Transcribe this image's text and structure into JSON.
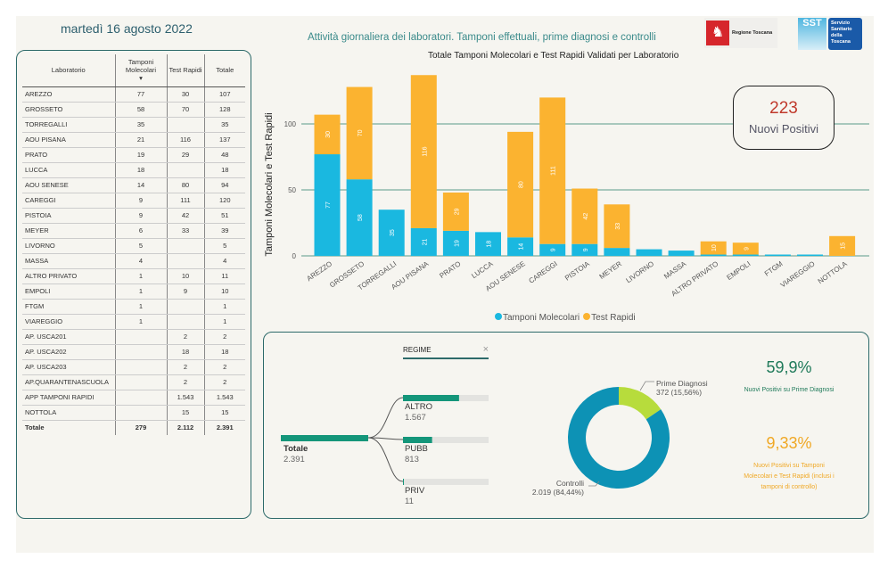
{
  "header": {
    "date": "martedì 16 agosto 2022",
    "subtitle": "Attività giornaliera dei laboratori. Tamponi effettuali, prime diagnosi e controlli",
    "logo1_text": "Regione Toscana",
    "logo2_text": "SST",
    "logo2_caption": "Servizio Sanitario della Toscana"
  },
  "table": {
    "headers": [
      "Laboratorio",
      "Tamponi Molecolari",
      "Test Rapidi",
      "Totale"
    ],
    "sort_indicator": "▾",
    "rows": [
      [
        "AREZZO",
        "77",
        "30",
        "107"
      ],
      [
        "GROSSETO",
        "58",
        "70",
        "128"
      ],
      [
        "TORREGALLI",
        "35",
        "",
        "35"
      ],
      [
        "AOU PISANA",
        "21",
        "116",
        "137"
      ],
      [
        "PRATO",
        "19",
        "29",
        "48"
      ],
      [
        "LUCCA",
        "18",
        "",
        "18"
      ],
      [
        "AOU SENESE",
        "14",
        "80",
        "94"
      ],
      [
        "CAREGGI",
        "9",
        "111",
        "120"
      ],
      [
        "PISTOIA",
        "9",
        "42",
        "51"
      ],
      [
        "MEYER",
        "6",
        "33",
        "39"
      ],
      [
        "LIVORNO",
        "5",
        "",
        "5"
      ],
      [
        "MASSA",
        "4",
        "",
        "4"
      ],
      [
        "ALTRO PRIVATO",
        "1",
        "10",
        "11"
      ],
      [
        "EMPOLI",
        "1",
        "9",
        "10"
      ],
      [
        "FTGM",
        "1",
        "",
        "1"
      ],
      [
        "VIAREGGIO",
        "1",
        "",
        "1"
      ],
      [
        "AP. USCA201",
        "",
        "2",
        "2"
      ],
      [
        "AP. USCA202",
        "",
        "18",
        "18"
      ],
      [
        "AP. USCA203",
        "",
        "2",
        "2"
      ],
      [
        "AP.QUARANTENASCUOLA",
        "",
        "2",
        "2"
      ],
      [
        "APP TAMPONI RAPIDI",
        "",
        "1.543",
        "1.543"
      ],
      [
        "NOTTOLA",
        "",
        "15",
        "15"
      ]
    ],
    "total": [
      "Totale",
      "279",
      "2.112",
      "2.391"
    ]
  },
  "kpi_box": {
    "value": "223",
    "label": "Nuovi Positivi"
  },
  "chart_data": {
    "type": "bar",
    "stacked": true,
    "title": "Totale Tamponi Molecolari e Test Rapidi Validati per Laboratorio",
    "xlabel": "",
    "ylabel": "Tamponi Molecolari e Test Rapidi",
    "ylim": [
      0,
      140
    ],
    "yticks": [
      0,
      50,
      100
    ],
    "grid": true,
    "legend": "bottom",
    "categories": [
      "AREZZO",
      "GROSSETO",
      "TORREGALLI",
      "AOU PISANA",
      "PRATO",
      "LUCCA",
      "AOU SENESE",
      "CAREGGI",
      "PISTOIA",
      "MEYER",
      "LIVORNO",
      "MASSA",
      "ALTRO PRIVATO",
      "EMPOLI",
      "FTGM",
      "VIAREGGIO",
      "NOTTOLA"
    ],
    "series": [
      {
        "name": "Tamponi Molecolari",
        "color": "#1ab8e0",
        "values": [
          77,
          58,
          35,
          21,
          19,
          18,
          14,
          9,
          9,
          6,
          5,
          4,
          1,
          1,
          1,
          1,
          0
        ]
      },
      {
        "name": "Test Rapidi",
        "color": "#fbb330",
        "values": [
          30,
          70,
          0,
          116,
          29,
          0,
          80,
          111,
          42,
          33,
          0,
          0,
          10,
          9,
          0,
          0,
          15
        ]
      }
    ]
  },
  "tree": {
    "filter_label": "REGIME",
    "root": {
      "label": "Totale",
      "value": "2.391"
    },
    "children": [
      {
        "label": "ALTRO",
        "value": "1.567",
        "fraction": 0.655
      },
      {
        "label": "PUBB",
        "value": "813",
        "fraction": 0.34
      },
      {
        "label": "PRIV",
        "value": "11",
        "fraction": 0.005
      }
    ],
    "color": "#14967a"
  },
  "donut": {
    "slices": [
      {
        "label": "Prime Diagnosi",
        "text": "372 (15,56%)",
        "value": 372,
        "color": "#b7dc3c"
      },
      {
        "label": "Controlli",
        "text": "2.019 (84,44%)",
        "value": 2019,
        "color": "#0d92b5"
      }
    ]
  },
  "kpis": [
    {
      "value": "59,9%",
      "label": "Nuovi Positivi su Prime Diagnosi",
      "color": "#1f7a5a"
    },
    {
      "value": "9,33%",
      "label": "Nuovi Positivi su Tamponi Molecolari e Test Rapidi (inclusi i tamponi di controllo)",
      "color": "#f0a825"
    }
  ]
}
